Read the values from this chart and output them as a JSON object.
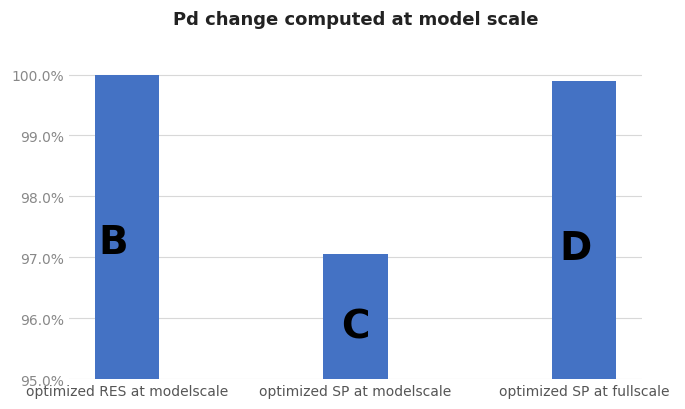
{
  "title": "Pd change computed at model scale",
  "categories": [
    "optimized RES at modelscale",
    "optimized SP at modelscale",
    "optimized SP at fullscale"
  ],
  "values": [
    1.0,
    0.9705,
    0.999
  ],
  "bar_bottom": 0.95,
  "bar_color": "#4472C4",
  "ylim": [
    0.95,
    1.006
  ],
  "yticks": [
    0.95,
    0.96,
    0.97,
    0.98,
    0.99,
    1.0
  ],
  "labels": [
    "B",
    "C",
    "D"
  ],
  "background_color": "#ffffff",
  "title_fontsize": 13,
  "label_fontsize": 28,
  "tick_fontsize": 10,
  "xlabel_fontsize": 10,
  "bar_width": 0.28
}
